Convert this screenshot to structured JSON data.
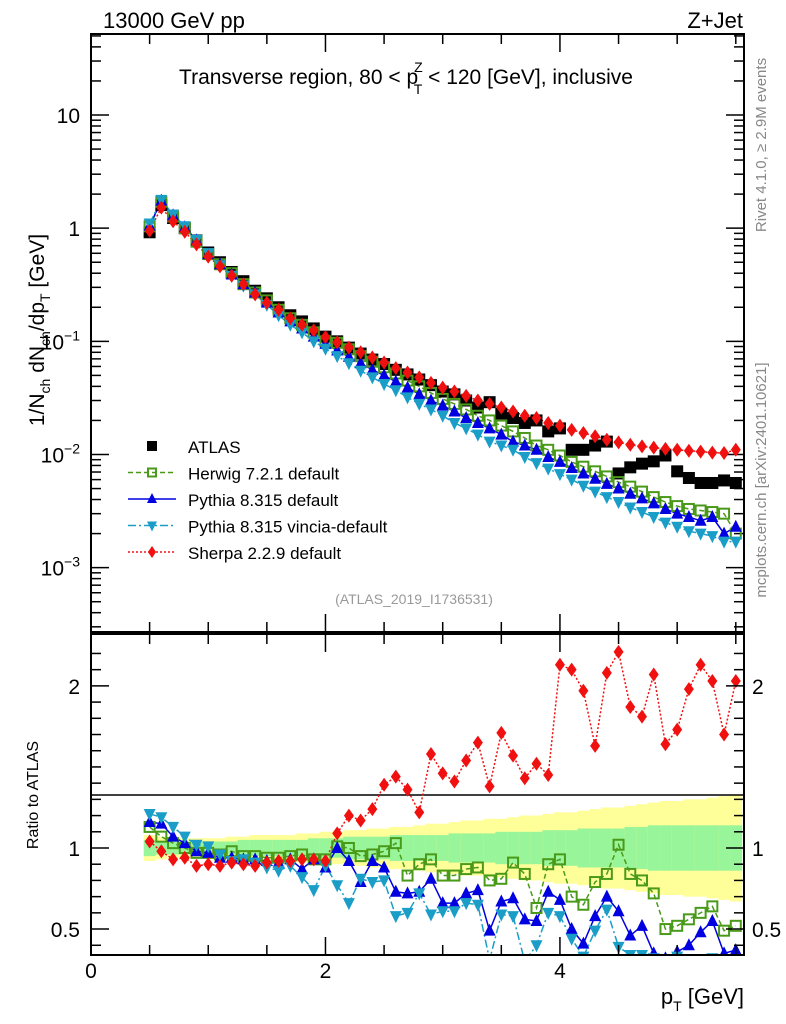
{
  "header": {
    "left_label": "13000 GeV pp",
    "right_label": "Z+Jet"
  },
  "side_labels": {
    "rivet": "Rivet 4.1.0, ≥ 2.9M events",
    "mcplots": "mcplots.cern.ch [arXiv:2401.10621]"
  },
  "chart_data": [
    {
      "type": "scatter",
      "panel": "main",
      "title": "Transverse region, 80 < p_T^Z < 120 [GeV], inclusive",
      "analysis_tag": "(ATLAS_2019_I1736531)",
      "xlabel": "",
      "ylabel": "1/N_ch dN_ch/dp_T [GeV]",
      "yscale": "log",
      "xlim": [
        0,
        5.57
      ],
      "ylim": [
        0.00027,
        52
      ],
      "yticks": [
        {
          "value": 10,
          "label": "10"
        },
        {
          "value": 1,
          "label": "1"
        },
        {
          "value": 0.1,
          "label": "10−1"
        },
        {
          "value": 0.01,
          "label": "10−2"
        },
        {
          "value": 0.001,
          "label": "10−3"
        }
      ],
      "legend_position": "bottom-left",
      "x": [
        0.5,
        0.6,
        0.7,
        0.8,
        0.9,
        1.0,
        1.1,
        1.2,
        1.3,
        1.4,
        1.5,
        1.6,
        1.7,
        1.8,
        1.9,
        2.0,
        2.1,
        2.2,
        2.3,
        2.4,
        2.5,
        2.6,
        2.7,
        2.8,
        2.9,
        3.0,
        3.1,
        3.2,
        3.3,
        3.4,
        3.5,
        3.6,
        3.7,
        3.8,
        3.9,
        4.0,
        4.1,
        4.2,
        4.3,
        4.4,
        4.5,
        4.6,
        4.7,
        4.8,
        4.9,
        5.0,
        5.1,
        5.2,
        5.3,
        5.4,
        5.5
      ],
      "series": [
        {
          "name": "ATLAS",
          "legend_label": "ATLAS",
          "color": "#000000",
          "marker": "square",
          "line": "none",
          "values": [
            0.92,
            1.6,
            1.23,
            1.0,
            0.78,
            0.61,
            0.5,
            0.41,
            0.34,
            0.28,
            0.24,
            0.2,
            0.17,
            0.15,
            0.13,
            0.11,
            0.1,
            0.088,
            0.078,
            0.069,
            0.063,
            0.056,
            0.051,
            0.046,
            0.041,
            0.036,
            0.034,
            0.03,
            0.026,
            0.029,
            0.023,
            0.021,
            0.019,
            0.02,
            0.016,
            0.017,
            0.011,
            0.011,
            0.012,
            0.013,
            0.0068,
            0.0077,
            0.0083,
            0.0087,
            0.0098,
            0.0071,
            0.0062,
            0.0056,
            0.0056,
            0.0059,
            0.0056
          ]
        },
        {
          "name": "Herwig",
          "legend_label": "Herwig 7.2.1 default",
          "color": "#4a9a1a",
          "marker": "open-square",
          "line": "dashed",
          "values": [
            1.04,
            1.71,
            1.27,
            1.0,
            0.76,
            0.59,
            0.48,
            0.4,
            0.32,
            0.27,
            0.23,
            0.19,
            0.16,
            0.14,
            0.12,
            0.1,
            0.097,
            0.085,
            0.074,
            0.066,
            0.059,
            0.052,
            0.045,
            0.04,
            0.035,
            0.031,
            0.028,
            0.025,
            0.022,
            0.02,
            0.018,
            0.016,
            0.014,
            0.012,
            0.011,
            0.0098,
            0.0086,
            0.0078,
            0.0071,
            0.0064,
            0.0057,
            0.0052,
            0.0047,
            0.0042,
            0.0038,
            0.0035,
            0.0033,
            0.0032,
            0.0031,
            0.003,
            0.002
          ]
        },
        {
          "name": "Pythia8",
          "legend_label": "Pythia 8.315 default",
          "color": "#0000e0",
          "marker": "triangle-up",
          "line": "solid",
          "values": [
            1.05,
            1.75,
            1.3,
            1.02,
            0.78,
            0.59,
            0.48,
            0.39,
            0.32,
            0.27,
            0.22,
            0.18,
            0.15,
            0.13,
            0.11,
            0.095,
            0.083,
            0.073,
            0.064,
            0.056,
            0.05,
            0.044,
            0.039,
            0.034,
            0.03,
            0.027,
            0.024,
            0.021,
            0.019,
            0.017,
            0.015,
            0.013,
            0.012,
            0.011,
            0.0095,
            0.0086,
            0.0076,
            0.0068,
            0.0061,
            0.0055,
            0.005,
            0.0045,
            0.0041,
            0.0037,
            0.0033,
            0.003,
            0.0028,
            0.0026,
            0.0028,
            0.002,
            0.0023
          ]
        },
        {
          "name": "Pythia8-vincia",
          "legend_label": "Pythia 8.315 vincia-default",
          "color": "#1a9ec8",
          "marker": "triangle-down",
          "line": "dashdot",
          "values": [
            1.1,
            1.78,
            1.32,
            1.04,
            0.79,
            0.6,
            0.47,
            0.38,
            0.31,
            0.26,
            0.21,
            0.17,
            0.14,
            0.12,
            0.1,
            0.086,
            0.074,
            0.064,
            0.055,
            0.048,
            0.042,
            0.037,
            0.032,
            0.028,
            0.025,
            0.022,
            0.019,
            0.017,
            0.015,
            0.013,
            0.012,
            0.011,
            0.0095,
            0.0084,
            0.0075,
            0.0067,
            0.006,
            0.0053,
            0.0047,
            0.0042,
            0.0038,
            0.0034,
            0.0031,
            0.0028,
            0.0025,
            0.0023,
            0.0021,
            0.002,
            0.0019,
            0.0017,
            0.0017
          ]
        },
        {
          "name": "Sherpa",
          "legend_label": "Sherpa 2.2.9 default",
          "color": "#f01010",
          "marker": "diamond",
          "line": "dotted",
          "values": [
            0.95,
            1.52,
            1.15,
            0.93,
            0.72,
            0.56,
            0.46,
            0.38,
            0.32,
            0.26,
            0.22,
            0.19,
            0.16,
            0.14,
            0.125,
            0.109,
            0.098,
            0.088,
            0.08,
            0.072,
            0.065,
            0.058,
            0.053,
            0.048,
            0.043,
            0.039,
            0.036,
            0.033,
            0.03,
            0.028,
            0.026,
            0.024,
            0.022,
            0.021,
            0.019,
            0.018,
            0.0165,
            0.0155,
            0.0145,
            0.0135,
            0.0128,
            0.0122,
            0.0118,
            0.0115,
            0.0112,
            0.011,
            0.0108,
            0.0106,
            0.0104,
            0.0103,
            0.011
          ]
        }
      ]
    },
    {
      "type": "scatter",
      "panel": "ratio",
      "xlabel": "p_T [GeV]",
      "ylabel": "Ratio to ATLAS",
      "yscale": "linear",
      "xlim": [
        0,
        5.57
      ],
      "ylim": [
        0.34,
        2.32
      ],
      "xticks": [
        {
          "value": 0,
          "label": "0"
        },
        {
          "value": 2,
          "label": "2"
        },
        {
          "value": 4,
          "label": "4"
        }
      ],
      "yticks": [
        {
          "value": 2,
          "label": "2"
        },
        {
          "value": 1,
          "label": "1"
        },
        {
          "value": 0.5,
          "label": "0.5"
        }
      ],
      "reference_line": 1,
      "bands": {
        "inner_color": "#99f599",
        "outer_color": "#ffff99",
        "x_edges": [
          0.45,
          0.55,
          0.65,
          0.75,
          0.85,
          0.95,
          1.05,
          1.15,
          1.25,
          1.35,
          1.45,
          1.55,
          1.65,
          1.75,
          1.85,
          1.95,
          2.05,
          2.15,
          2.25,
          2.35,
          2.45,
          2.55,
          2.65,
          2.75,
          2.85,
          2.95,
          3.05,
          3.15,
          3.25,
          3.35,
          3.45,
          3.55,
          3.65,
          3.75,
          3.85,
          3.95,
          4.05,
          4.15,
          4.25,
          4.35,
          4.45,
          4.55,
          4.65,
          4.75,
          4.85,
          4.95,
          5.05,
          5.15,
          5.25,
          5.35,
          5.45,
          5.55
        ],
        "inner_half_width": [
          0.05,
          0.04,
          0.04,
          0.04,
          0.04,
          0.04,
          0.04,
          0.04,
          0.05,
          0.05,
          0.05,
          0.05,
          0.05,
          0.05,
          0.06,
          0.06,
          0.06,
          0.07,
          0.07,
          0.07,
          0.07,
          0.08,
          0.08,
          0.08,
          0.08,
          0.08,
          0.09,
          0.09,
          0.09,
          0.09,
          0.1,
          0.1,
          0.1,
          0.1,
          0.11,
          0.11,
          0.11,
          0.12,
          0.12,
          0.12,
          0.12,
          0.13,
          0.13,
          0.14,
          0.14,
          0.14,
          0.14,
          0.14,
          0.14,
          0.14,
          0.14
        ],
        "outer_half_width": [
          0.08,
          0.07,
          0.06,
          0.06,
          0.06,
          0.06,
          0.06,
          0.07,
          0.07,
          0.08,
          0.08,
          0.08,
          0.08,
          0.09,
          0.09,
          0.1,
          0.1,
          0.11,
          0.11,
          0.12,
          0.12,
          0.13,
          0.13,
          0.14,
          0.15,
          0.15,
          0.16,
          0.17,
          0.17,
          0.18,
          0.18,
          0.19,
          0.2,
          0.2,
          0.21,
          0.22,
          0.22,
          0.23,
          0.24,
          0.25,
          0.25,
          0.26,
          0.27,
          0.28,
          0.29,
          0.29,
          0.3,
          0.3,
          0.31,
          0.32,
          0.33
        ]
      },
      "x": [
        0.5,
        0.6,
        0.7,
        0.8,
        0.9,
        1.0,
        1.1,
        1.2,
        1.3,
        1.4,
        1.5,
        1.6,
        1.7,
        1.8,
        1.9,
        2.0,
        2.1,
        2.2,
        2.3,
        2.4,
        2.5,
        2.6,
        2.7,
        2.8,
        2.9,
        3.0,
        3.1,
        3.2,
        3.3,
        3.4,
        3.5,
        3.6,
        3.7,
        3.8,
        3.9,
        4.0,
        4.1,
        4.2,
        4.3,
        4.4,
        4.5,
        4.6,
        4.7,
        4.8,
        4.9,
        5.0,
        5.1,
        5.2,
        5.3,
        5.4,
        5.5
      ],
      "series": [
        {
          "name": "Herwig",
          "color": "#4a9a1a",
          "marker": "open-square",
          "line": "dashed",
          "values": [
            1.13,
            1.07,
            1.03,
            1.0,
            0.97,
            0.97,
            0.96,
            0.98,
            0.95,
            0.95,
            0.94,
            0.94,
            0.95,
            0.96,
            0.93,
            0.93,
            1.01,
            1.0,
            0.95,
            0.96,
            0.98,
            1.03,
            0.83,
            0.9,
            0.93,
            0.83,
            0.83,
            0.87,
            0.88,
            0.8,
            0.81,
            0.91,
            0.84,
            0.63,
            0.9,
            0.93,
            0.7,
            0.65,
            0.79,
            0.84,
            1.02,
            0.84,
            0.8,
            0.72,
            0.5,
            0.52,
            0.56,
            0.6,
            0.64,
            0.49,
            0.52
          ]
        },
        {
          "name": "Pythia8",
          "color": "#0000e0",
          "marker": "triangle-up",
          "line": "solid",
          "values": [
            1.16,
            1.15,
            1.07,
            1.03,
            0.98,
            0.97,
            0.94,
            0.94,
            0.93,
            0.93,
            0.92,
            0.91,
            0.93,
            0.87,
            0.93,
            0.88,
            1.0,
            0.92,
            0.79,
            0.92,
            0.88,
            0.73,
            0.72,
            0.73,
            0.81,
            0.66,
            0.66,
            0.72,
            0.74,
            0.49,
            0.67,
            0.69,
            0.56,
            0.55,
            0.73,
            0.68,
            0.5,
            0.41,
            0.58,
            0.7,
            0.61,
            0.46,
            0.52,
            0.35,
            0.32,
            0.36,
            0.4,
            0.48,
            0.55,
            0.35,
            0.37
          ]
        },
        {
          "name": "Pythia8-vincia",
          "color": "#1a9ec8",
          "marker": "triangle-down",
          "line": "dashdot",
          "values": [
            1.21,
            1.19,
            1.13,
            1.07,
            1.02,
            1.01,
            0.96,
            0.92,
            0.93,
            0.91,
            0.88,
            0.86,
            0.89,
            0.82,
            0.74,
            0.89,
            0.77,
            0.66,
            0.81,
            0.79,
            0.8,
            0.58,
            0.6,
            0.72,
            0.59,
            0.61,
            0.61,
            0.66,
            0.65,
            0.31,
            0.59,
            0.58,
            0.3,
            0.4,
            0.6,
            0.58,
            0.44,
            0.33,
            0.49,
            0.62,
            0.39,
            0.34,
            0.34,
            0.32,
            0.31,
            0.33,
            0.3,
            0.31,
            0.32,
            0.3,
            0.3
          ]
        },
        {
          "name": "Sherpa",
          "color": "#f01010",
          "marker": "diamond",
          "line": "dotted",
          "values": [
            1.04,
            0.98,
            0.93,
            0.94,
            0.89,
            0.9,
            0.89,
            0.91,
            0.9,
            0.89,
            0.91,
            0.92,
            0.92,
            0.93,
            0.93,
            0.92,
            1.09,
            1.2,
            1.17,
            1.24,
            1.39,
            1.44,
            1.36,
            1.22,
            1.58,
            1.46,
            1.41,
            1.54,
            1.65,
            1.38,
            1.71,
            1.57,
            1.43,
            1.52,
            1.45,
            2.13,
            2.1,
            1.97,
            1.63,
            2.08,
            2.21,
            1.87,
            1.81,
            2.07,
            1.64,
            1.73,
            1.98,
            2.13,
            2.03,
            1.7,
            2.03
          ]
        }
      ]
    }
  ]
}
